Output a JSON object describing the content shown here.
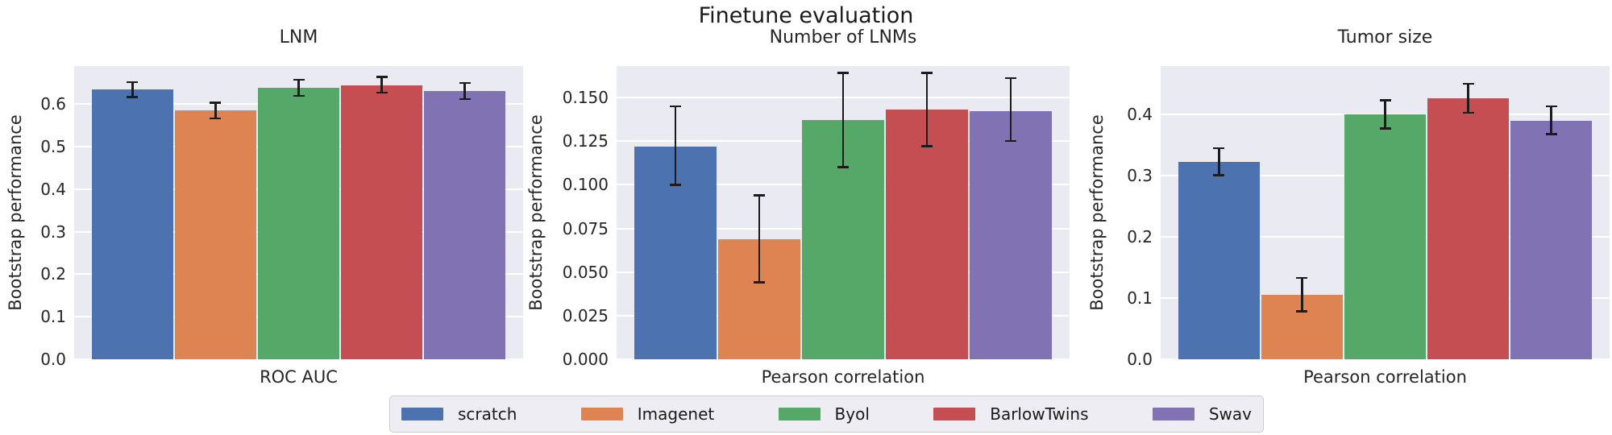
{
  "title": "Finetune evaluation",
  "colors": {
    "figure_background": "#ffffff",
    "axes_background": "#eaeaf2",
    "gridline": "#ffffff",
    "text": "#262626",
    "errorbar": "#1c1c1c",
    "palette": [
      "#4c72b0",
      "#dd8452",
      "#55a868",
      "#c44e52",
      "#8172b3"
    ]
  },
  "legend": {
    "entries": [
      {
        "label": "scratch",
        "color": "#4c72b0"
      },
      {
        "label": "Imagenet",
        "color": "#dd8452"
      },
      {
        "label": "Byol",
        "color": "#55a868"
      },
      {
        "label": "BarlowTwins",
        "color": "#c44e52"
      },
      {
        "label": "Swav",
        "color": "#8172b3"
      }
    ]
  },
  "chart_data": [
    {
      "type": "bar",
      "title": "LNM",
      "xlabel": "ROC AUC",
      "ylabel": "Bootstrap performance",
      "ylim": [
        0,
        0.69
      ],
      "yticks": [
        0.0,
        0.1,
        0.2,
        0.3,
        0.4,
        0.5,
        0.6
      ],
      "ytick_decimals": 1,
      "grid": true,
      "legend_position": "none",
      "categories": [
        "scratch",
        "Imagenet",
        "Byol",
        "BarlowTwins",
        "Swav"
      ],
      "values": [
        0.635,
        0.585,
        0.639,
        0.645,
        0.631
      ],
      "error_low": [
        0.617,
        0.567,
        0.62,
        0.627,
        0.612
      ],
      "error_high": [
        0.652,
        0.604,
        0.658,
        0.664,
        0.65
      ]
    },
    {
      "type": "bar",
      "title": "Number of LNMs",
      "xlabel": "Pearson correlation",
      "ylabel": "Bootstrap performance",
      "ylim": [
        0,
        0.168
      ],
      "yticks": [
        0.0,
        0.025,
        0.05,
        0.075,
        0.1,
        0.125,
        0.15
      ],
      "ytick_decimals": 3,
      "grid": true,
      "legend_position": "none",
      "categories": [
        "scratch",
        "Imagenet",
        "Byol",
        "BarlowTwins",
        "Swav"
      ],
      "values": [
        0.122,
        0.069,
        0.137,
        0.143,
        0.142
      ],
      "error_low": [
        0.1,
        0.044,
        0.11,
        0.122,
        0.125
      ],
      "error_high": [
        0.145,
        0.094,
        0.164,
        0.164,
        0.161
      ]
    },
    {
      "type": "bar",
      "title": "Tumor size",
      "xlabel": "Pearson correlation",
      "ylabel": "Bootstrap performance",
      "ylim": [
        0,
        0.479
      ],
      "yticks": [
        0.0,
        0.1,
        0.2,
        0.3,
        0.4
      ],
      "ytick_decimals": 1,
      "grid": true,
      "legend_position": "none",
      "categories": [
        "scratch",
        "Imagenet",
        "Byol",
        "BarlowTwins",
        "Swav"
      ],
      "values": [
        0.323,
        0.105,
        0.4,
        0.426,
        0.39
      ],
      "error_low": [
        0.301,
        0.078,
        0.377,
        0.403,
        0.368
      ],
      "error_high": [
        0.345,
        0.133,
        0.423,
        0.45,
        0.413
      ]
    }
  ]
}
